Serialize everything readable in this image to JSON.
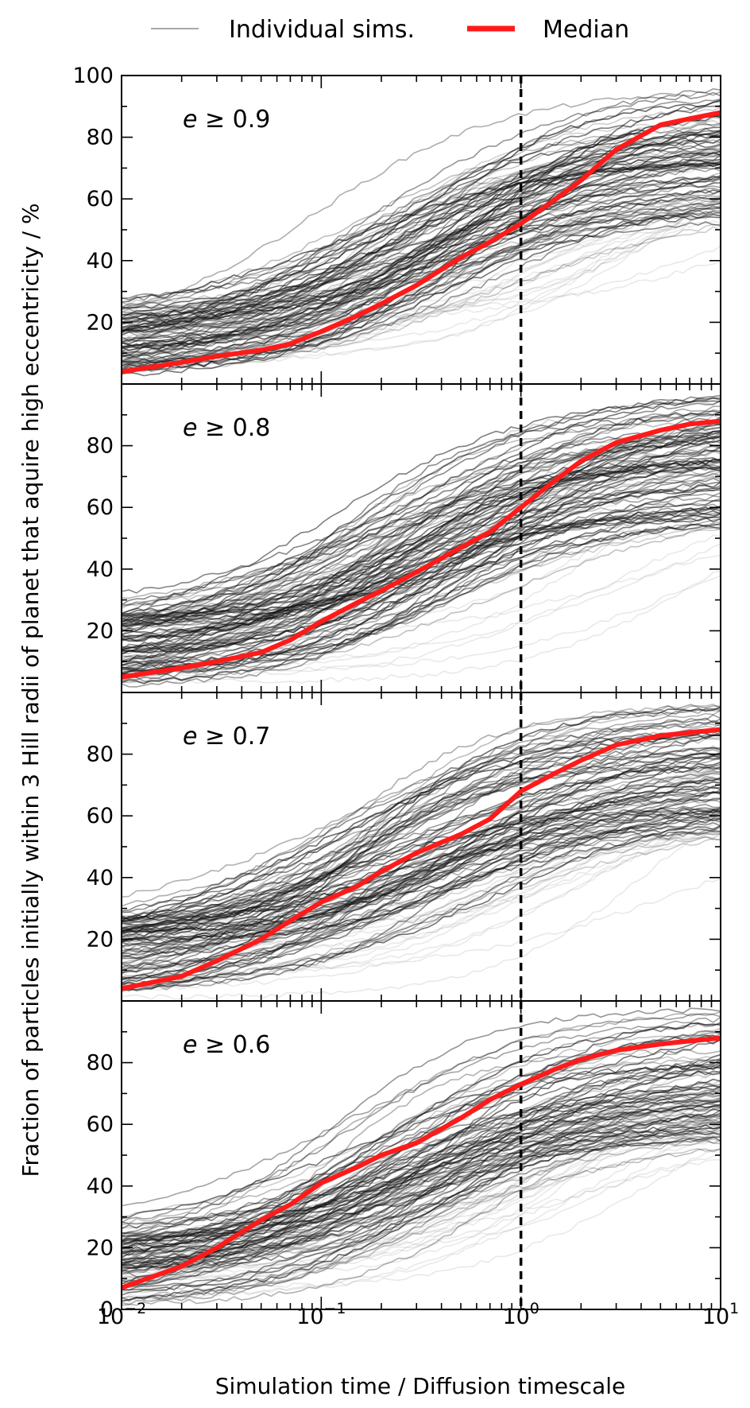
{
  "legend": {
    "individual_label": "Individual sims.",
    "median_label": "Median",
    "individual_color": "#aaaaaa",
    "median_color": "#ff1a1a"
  },
  "chart_data": {
    "type": "line",
    "xscale": "log",
    "xlim": [
      0.01,
      10
    ],
    "x_ticks": [
      {
        "value": 0.01,
        "base": "10",
        "exp": "−2"
      },
      {
        "value": 0.1,
        "base": "10",
        "exp": "−1"
      },
      {
        "value": 1,
        "base": "10",
        "exp": "0"
      },
      {
        "value": 10,
        "base": "10",
        "exp": "1"
      }
    ],
    "xlabel": "Simulation time / Diffusion timescale",
    "ylabel": "Fraction of particles initially within 3 Hill radii of planet that aquire high eccentricity / %",
    "ylim": [
      0,
      100
    ],
    "vline_x": 1,
    "x": [
      0.01,
      0.02,
      0.03,
      0.05,
      0.07,
      0.1,
      0.15,
      0.2,
      0.3,
      0.5,
      0.7,
      1,
      1.5,
      2,
      3,
      5,
      7,
      10
    ],
    "panels": [
      {
        "label_var": "e",
        "label_rest": " ≥ 0.9",
        "yticks": [
          "100",
          "80",
          "60",
          "40",
          "20"
        ],
        "ytick_values": [
          100,
          80,
          60,
          40,
          20
        ],
        "median": [
          4,
          7,
          9,
          11,
          13,
          17,
          22,
          26,
          32,
          41,
          46,
          52,
          60,
          66,
          76,
          84,
          86,
          88
        ]
      },
      {
        "label_var": "e",
        "label_rest": " ≥ 0.8",
        "yticks": [
          "80",
          "60",
          "40",
          "20"
        ],
        "ytick_values": [
          80,
          60,
          40,
          20
        ],
        "median": [
          5,
          8,
          10,
          13,
          17,
          23,
          29,
          33,
          39,
          47,
          52,
          60,
          69,
          75,
          81,
          85,
          87,
          88
        ]
      },
      {
        "label_var": "e",
        "label_rest": " ≥ 0.7",
        "yticks": [
          "80",
          "60",
          "40",
          "20"
        ],
        "ytick_values": [
          80,
          60,
          40,
          20
        ],
        "median": [
          4,
          8,
          13,
          20,
          26,
          32,
          37,
          42,
          48,
          54,
          59,
          68,
          74,
          78,
          83,
          86,
          87,
          88
        ]
      },
      {
        "label_var": "e",
        "label_rest": " ≥ 0.6",
        "yticks": [
          "80",
          "60",
          "40",
          "20",
          "0"
        ],
        "ytick_values": [
          80,
          60,
          40,
          20,
          0
        ],
        "median": [
          7,
          14,
          20,
          29,
          34,
          41,
          46,
          50,
          54,
          62,
          68,
          73,
          78,
          81,
          84,
          86,
          87,
          88
        ]
      }
    ]
  }
}
